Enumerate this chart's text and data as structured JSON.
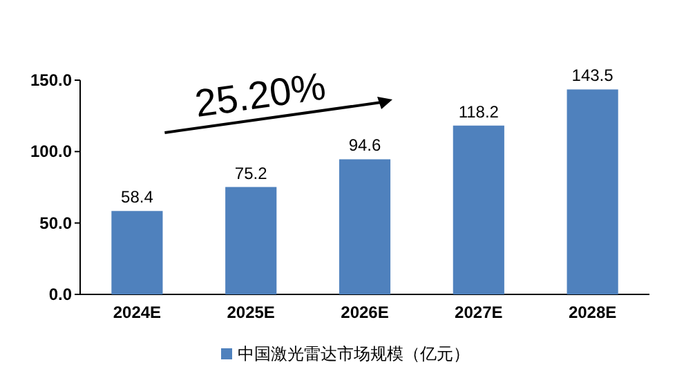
{
  "chart_data": {
    "type": "bar",
    "categories": [
      "2024E",
      "2025E",
      "2026E",
      "2027E",
      "2028E"
    ],
    "series": [
      {
        "name": "中国激光雷达市场规模（亿元）",
        "color": "#4f81bd",
        "values": [
          58.4,
          75.2,
          94.6,
          118.2,
          143.5
        ]
      }
    ],
    "ylim": [
      0,
      150
    ],
    "yticks": [
      {
        "value": 0,
        "label": "0.0"
      },
      {
        "value": 50,
        "label": "50.0"
      },
      {
        "value": 100,
        "label": "100.0"
      },
      {
        "value": 150,
        "label": "150.0"
      }
    ],
    "annotations": [
      "25.20%"
    ],
    "data_labels": true,
    "grid": false,
    "legend": "bottom"
  }
}
